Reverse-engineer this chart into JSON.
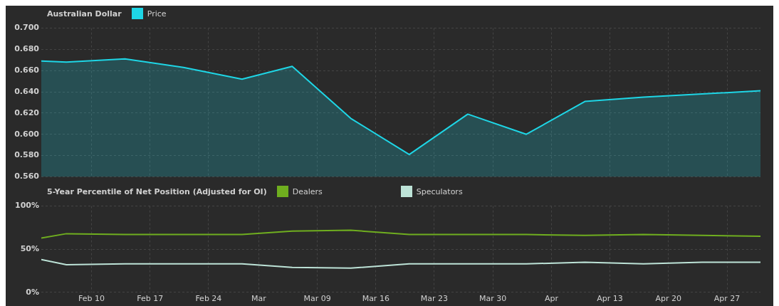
{
  "chart_data": [
    {
      "type": "area",
      "title": "Australian Dollar",
      "legend": "top left",
      "grid": true,
      "tick_labels": "y",
      "x": [
        "--02-04",
        "--02-07",
        "--02-14",
        "--02-21",
        "--02-28",
        "--03-06",
        "--03-13",
        "--03-20",
        "--03-27",
        "--04-03",
        "--04-10",
        "--04-17",
        "--04-24",
        "--05-01"
      ],
      "xlim": [
        "--02-04",
        "--05-01"
      ],
      "xticks": [
        {
          "value": "--02-10",
          "label": "Feb 10"
        },
        {
          "value": "--02-17",
          "label": "Feb 17"
        },
        {
          "value": "--02-24",
          "label": "Feb 24"
        },
        {
          "value": "--03-02",
          "label": "Mar"
        },
        {
          "value": "--03-09",
          "label": "Mar 09"
        },
        {
          "value": "--03-16",
          "label": "Mar 16"
        },
        {
          "value": "--03-23",
          "label": "Mar 23"
        },
        {
          "value": "--03-30",
          "label": "Mar 30"
        },
        {
          "value": "--04-06",
          "label": "Apr"
        },
        {
          "value": "--04-13",
          "label": "Apr 13"
        },
        {
          "value": "--04-20",
          "label": "Apr 20"
        },
        {
          "value": "--04-27",
          "label": "Apr 27"
        }
      ],
      "ylim": [
        0.56,
        0.7
      ],
      "yticks": [
        {
          "value": 0.56,
          "label": "0.560"
        },
        {
          "value": 0.58,
          "label": "0.580"
        },
        {
          "value": 0.6,
          "label": "0.600"
        },
        {
          "value": 0.62,
          "label": "0.620"
        },
        {
          "value": 0.64,
          "label": "0.640"
        },
        {
          "value": 0.66,
          "label": "0.660"
        },
        {
          "value": 0.68,
          "label": "0.680"
        },
        {
          "value": 0.7,
          "label": "0.700"
        }
      ],
      "series": [
        {
          "name": "Price",
          "color": "#1ed6e6",
          "values": [
            0.669,
            0.668,
            0.671,
            0.663,
            0.652,
            0.664,
            0.615,
            0.581,
            0.619,
            0.6,
            0.631,
            0.635,
            0.638,
            0.641
          ]
        }
      ]
    },
    {
      "type": "line",
      "title": "5-Year Percentile of Net Position (Adjusted for OI)",
      "legend": "top left",
      "grid": true,
      "x": [
        "--02-04",
        "--02-07",
        "--02-14",
        "--02-21",
        "--02-28",
        "--03-06",
        "--03-13",
        "--03-20",
        "--03-27",
        "--04-03",
        "--04-10",
        "--04-17",
        "--04-24",
        "--05-01"
      ],
      "xlim": [
        "--02-04",
        "--05-01"
      ],
      "xticks": [
        {
          "value": "--02-10",
          "label": "Feb 10"
        },
        {
          "value": "--02-17",
          "label": "Feb 17"
        },
        {
          "value": "--02-24",
          "label": "Feb 24"
        },
        {
          "value": "--03-02",
          "label": "Mar"
        },
        {
          "value": "--03-09",
          "label": "Mar 09"
        },
        {
          "value": "--03-16",
          "label": "Mar 16"
        },
        {
          "value": "--03-23",
          "label": "Mar 23"
        },
        {
          "value": "--03-30",
          "label": "Mar 30"
        },
        {
          "value": "--04-06",
          "label": "Apr"
        },
        {
          "value": "--04-13",
          "label": "Apr 13"
        },
        {
          "value": "--04-20",
          "label": "Apr 20"
        },
        {
          "value": "--04-27",
          "label": "Apr 27"
        }
      ],
      "ylim": [
        0,
        100
      ],
      "yticks": [
        {
          "value": 0,
          "label": "0%"
        },
        {
          "value": 50,
          "label": "50%"
        },
        {
          "value": 100,
          "label": "100%"
        }
      ],
      "series": [
        {
          "name": "Dealers",
          "color": "#6fae1f",
          "values": [
            63,
            68,
            67,
            67,
            67,
            71,
            72,
            67,
            67,
            67,
            66,
            67,
            66,
            65
          ]
        },
        {
          "name": "Speculators",
          "color": "#bde3d7",
          "values": [
            38,
            32,
            33,
            33,
            33,
            29,
            28,
            33,
            33,
            33,
            35,
            33,
            35,
            35
          ]
        }
      ]
    }
  ]
}
